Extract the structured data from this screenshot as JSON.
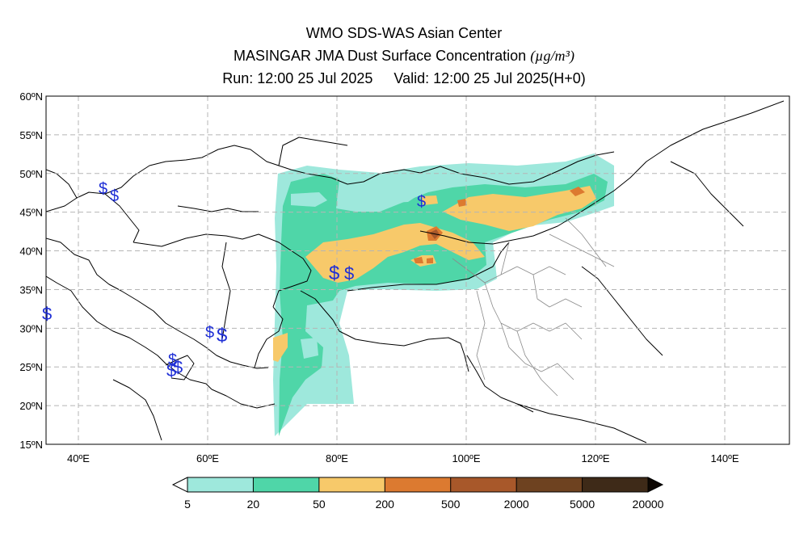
{
  "titles": {
    "line1": "WMO SDS-WAS Asian Center",
    "line2_text": "MASINGAR JMA Dust Surface Concentration",
    "line2_unit": "(µg/m³)",
    "run": "Run: 12:00 25 Jul 2025",
    "valid": "Valid: 12:00 25 Jul 2025(H+0)"
  },
  "axes": {
    "lat_labels": [
      "60ºN",
      "55ºN",
      "50ºN",
      "45ºN",
      "40ºN",
      "35ºN",
      "30ºN",
      "25ºN",
      "20ºN",
      "15ºN"
    ],
    "lon_labels": [
      "40ºE",
      "60ºE",
      "80ºE",
      "100ºE",
      "120ºE",
      "140ºE"
    ],
    "lat_range": [
      15,
      60
    ],
    "lon_range": [
      35,
      150
    ],
    "grid": "dashed"
  },
  "colorbar": {
    "levels": [
      "5",
      "20",
      "50",
      "200",
      "500",
      "2000",
      "5000",
      "20000"
    ],
    "colors": [
      "#9ee8dc",
      "#4fd6a8",
      "#f7c96a",
      "#dc7a30",
      "#a8582a",
      "#6e4220",
      "#3e2a18"
    ],
    "extend": "both"
  },
  "markers": {
    "symbol": "$",
    "color": "#1f2fd6"
  }
}
